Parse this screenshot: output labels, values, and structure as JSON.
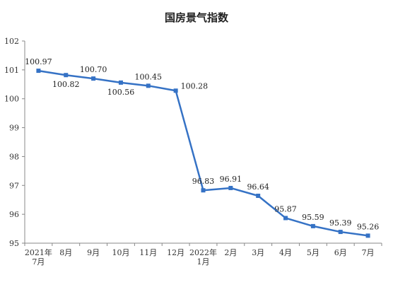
{
  "chart_data": {
    "type": "line",
    "title": "国房景气指数",
    "xlabel": "",
    "ylabel": "",
    "ylim": [
      95,
      102
    ],
    "yticks": [
      95,
      96,
      97,
      98,
      99,
      100,
      101,
      102
    ],
    "categories": [
      [
        "2021年",
        "7月"
      ],
      [
        "8月"
      ],
      [
        "9月"
      ],
      [
        "10月"
      ],
      [
        "11月"
      ],
      [
        "12月"
      ],
      [
        "2022年",
        "1月"
      ],
      [
        "2月"
      ],
      [
        "3月"
      ],
      [
        "4月"
      ],
      [
        "5月"
      ],
      [
        "6月"
      ],
      [
        "7月"
      ]
    ],
    "series": [
      {
        "values": [
          100.97,
          100.82,
          100.7,
          100.56,
          100.45,
          100.28,
          96.83,
          96.91,
          96.64,
          95.87,
          95.59,
          95.39,
          95.26
        ],
        "labels": [
          "100.97",
          "100.82",
          "100.70",
          "100.56",
          "100.45",
          "100.28",
          "96.83",
          "96.91",
          "96.64",
          "95.87",
          "95.59",
          "95.39",
          "95.26"
        ],
        "label_positions": [
          "above",
          "below",
          "above",
          "below",
          "above",
          "right",
          "above",
          "above",
          "above",
          "above",
          "above",
          "above",
          "above"
        ]
      }
    ],
    "grid": false,
    "line_color": "#3572c5"
  }
}
